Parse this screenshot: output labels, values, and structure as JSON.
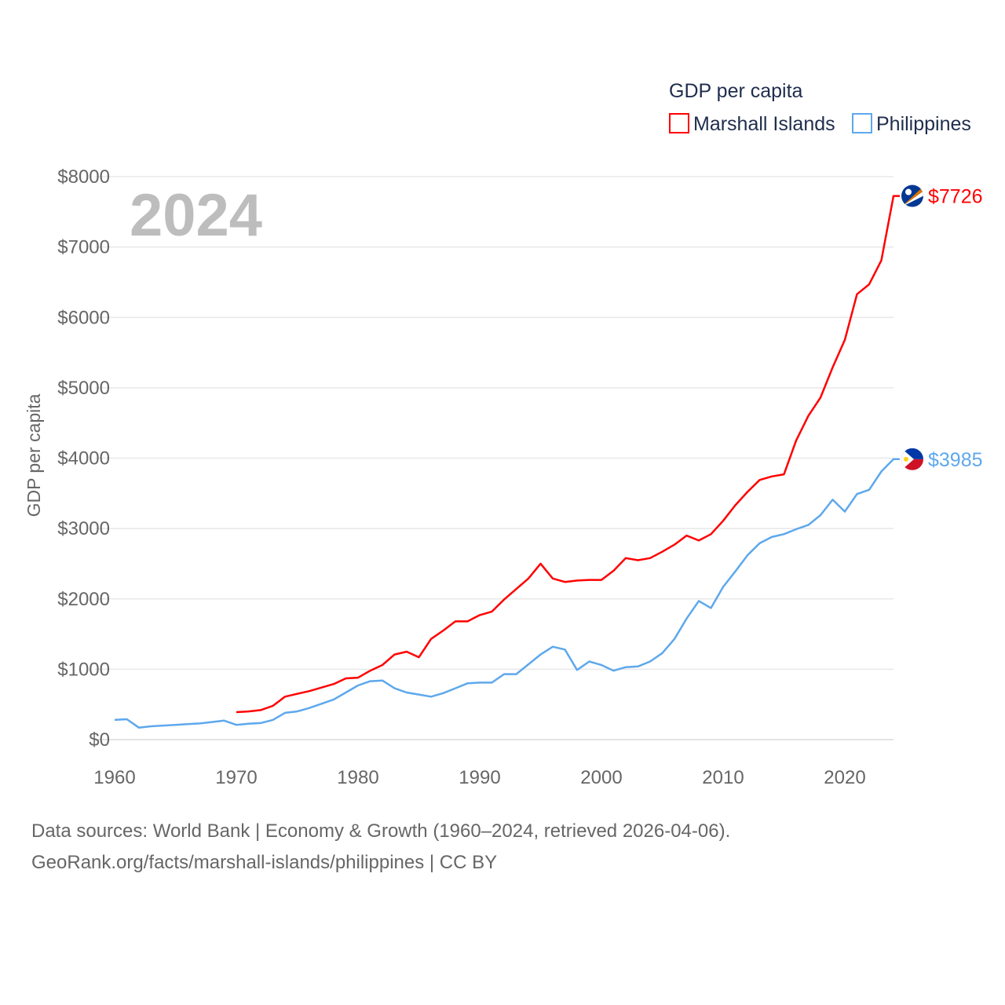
{
  "chart_data": {
    "type": "line",
    "title": "GDP per capita",
    "ylabel": "GDP per capita",
    "xlabel": "",
    "xlim": [
      1960,
      2024
    ],
    "ylim": [
      0,
      8000
    ],
    "x_ticks": [
      "1960",
      "1970",
      "1980",
      "1990",
      "2000",
      "2010",
      "2020"
    ],
    "y_ticks": [
      "$0",
      "$1000",
      "$2000",
      "$3000",
      "$4000",
      "$5000",
      "$6000",
      "$7000",
      "$8000"
    ],
    "grid": true,
    "legend_position": "top-right",
    "year_overlay": "2024",
    "series": [
      {
        "name": "Marshall Islands",
        "color": "#ff0000",
        "end_label": "$7726",
        "flag_icon": "marshall-islands-flag",
        "start_year": 1970,
        "values": [
          390,
          400,
          420,
          480,
          610,
          650,
          690,
          740,
          790,
          870,
          880,
          980,
          1060,
          1210,
          1250,
          1170,
          1430,
          1550,
          1680,
          1680,
          1770,
          1820,
          1990,
          2140,
          2290,
          2500,
          2290,
          2240,
          2260,
          2270,
          2270,
          2400,
          2580,
          2550,
          2580,
          2670,
          2770,
          2900,
          2830,
          2920,
          3110,
          3330,
          3520,
          3690,
          3740,
          3770,
          4250,
          4600,
          4860,
          5290,
          5680,
          6330,
          6470,
          6810,
          7726
        ]
      },
      {
        "name": "Philippines",
        "color": "#5ea8ec",
        "end_label": "$3985",
        "flag_icon": "philippines-flag",
        "start_year": 1960,
        "values": [
          280,
          290,
          170,
          190,
          200,
          210,
          220,
          230,
          250,
          270,
          210,
          225,
          235,
          280,
          380,
          400,
          450,
          510,
          570,
          670,
          770,
          830,
          840,
          730,
          670,
          640,
          610,
          660,
          730,
          800,
          810,
          810,
          930,
          930,
          1070,
          1210,
          1320,
          1280,
          990,
          1110,
          1060,
          980,
          1030,
          1040,
          1110,
          1230,
          1430,
          1720,
          1970,
          1870,
          2170,
          2390,
          2620,
          2790,
          2880,
          2920,
          2990,
          3050,
          3190,
          3410,
          3240,
          3490,
          3550,
          3810,
          3985
        ]
      }
    ]
  },
  "footer": {
    "line1": "Data sources: World Bank | Economy & Growth (1960–2024, retrieved 2026-04-06).",
    "line2": "GeoRank.org/facts/marshall-islands/philippines | CC BY"
  }
}
